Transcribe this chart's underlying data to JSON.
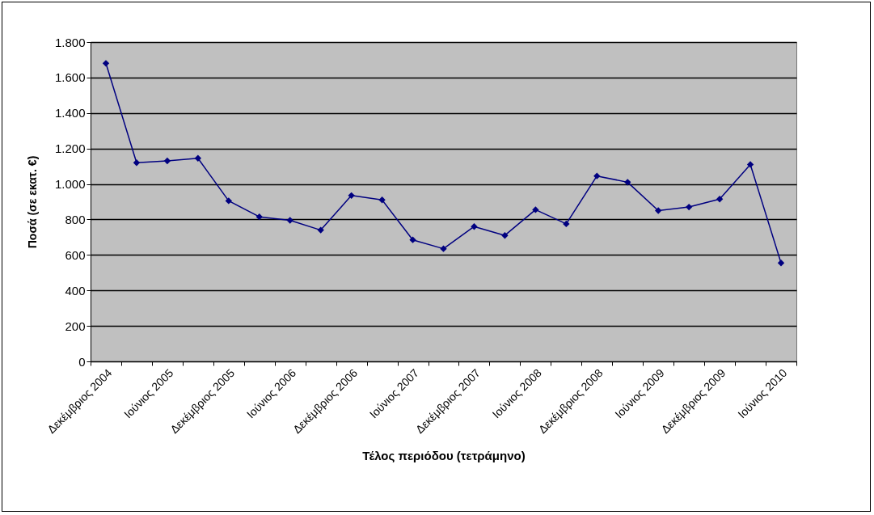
{
  "chart_data": {
    "type": "line",
    "xlabel": "Τέλος περιόδου (τετράμηνο)",
    "ylabel": "Ποσά (σε εκατ. €)",
    "categories": [
      "Δεκέμβριος 2004",
      null,
      "Ιούνιος 2005",
      null,
      "Δεκέμβριος 2005",
      null,
      "Ιούνιος 2006",
      null,
      "Δεκέμβριος 2006",
      null,
      "Ιούνιος 2007",
      null,
      "Δεκέμβριος 2007",
      null,
      "Ιούνιος 2008",
      null,
      "Δεκέμβριος 2008",
      null,
      "Ιούνιος 2009",
      null,
      "Δεκέμβριος 2009",
      null,
      "Ιούνιος 2010"
    ],
    "series": [
      {
        "color": "#000080",
        "values": [
          1680,
          1120,
          1130,
          1145,
          905,
          815,
          795,
          740,
          935,
          910,
          685,
          635,
          760,
          710,
          855,
          775,
          1045,
          1010,
          850,
          870,
          915,
          1110,
          555
        ]
      }
    ],
    "ylim": [
      0,
      1800
    ],
    "yticks": [
      {
        "value": 0,
        "label": "0"
      },
      {
        "value": 200,
        "label": "200"
      },
      {
        "value": 400,
        "label": "400"
      },
      {
        "value": 600,
        "label": "600"
      },
      {
        "value": 800,
        "label": "800"
      },
      {
        "value": 1000,
        "label": "1.000"
      },
      {
        "value": 1200,
        "label": "1.200"
      },
      {
        "value": 1400,
        "label": "1.400"
      },
      {
        "value": 1600,
        "label": "1.600"
      },
      {
        "value": 1800,
        "label": "1.800"
      }
    ],
    "grid": "y",
    "marker": "diamond",
    "line_style": "solid"
  }
}
